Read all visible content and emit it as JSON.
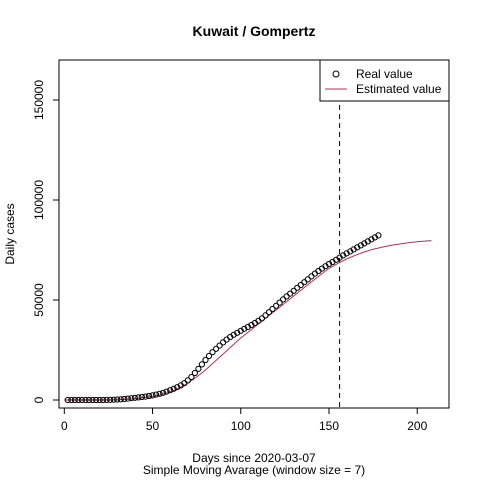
{
  "chart_data": {
    "type": "scatter",
    "title": "Kuwait / Gompertz",
    "xlabel": "Days since 2020-03-07",
    "subtitle": "Simple Moving Avarage (window size = 7)",
    "ylabel": "Daily cases",
    "xlim": [
      -3,
      218
    ],
    "ylim": [
      -4000,
      170000
    ],
    "xticks": [
      0,
      50,
      100,
      150,
      200
    ],
    "yticks": [
      0,
      50000,
      100000,
      150000
    ],
    "cutoff_x": 156,
    "legend": {
      "placement": "top-right",
      "entries": [
        "Real value",
        "Estimated value"
      ]
    },
    "colors": {
      "real": "#000000",
      "estimated": "#b03060"
    },
    "series": [
      {
        "name": "Real value",
        "style": "points",
        "x": [
          2,
          4,
          6,
          8,
          10,
          12,
          14,
          16,
          18,
          20,
          22,
          24,
          26,
          28,
          30,
          32,
          34,
          36,
          38,
          40,
          42,
          44,
          46,
          48,
          50,
          52,
          54,
          56,
          58,
          60,
          62,
          64,
          66,
          68,
          70,
          72,
          74,
          76,
          78,
          80,
          82,
          84,
          86,
          88,
          90,
          92,
          94,
          96,
          98,
          100,
          102,
          104,
          106,
          108,
          110,
          112,
          114,
          116,
          118,
          120,
          122,
          124,
          126,
          128,
          130,
          132,
          134,
          136,
          138,
          140,
          142,
          144,
          146,
          148,
          150,
          152,
          154,
          156,
          158,
          160,
          162,
          164,
          166,
          168,
          170,
          172,
          174,
          176,
          178
        ],
        "y": [
          0,
          0,
          0,
          0,
          0,
          0,
          0,
          0,
          0,
          0,
          0,
          50,
          100,
          150,
          250,
          350,
          500,
          700,
          900,
          1100,
          1300,
          1500,
          1700,
          2000,
          2300,
          2700,
          3100,
          3600,
          4200,
          4900,
          5600,
          6400,
          7300,
          8400,
          9800,
          11500,
          13500,
          15600,
          17800,
          20000,
          22000,
          23900,
          25600,
          27200,
          28800,
          30200,
          31500,
          32600,
          33600,
          34600,
          35600,
          36500,
          37500,
          38500,
          39600,
          40800,
          42300,
          43900,
          45500,
          47100,
          48700,
          50300,
          51800,
          53200,
          54600,
          56100,
          57500,
          58900,
          60300,
          61800,
          63200,
          64500,
          65700,
          66900,
          68000,
          69000,
          70100,
          71200,
          72300,
          73300,
          74300,
          75300,
          76300,
          77300,
          78300,
          79300,
          80300,
          81300,
          82300
        ]
      },
      {
        "name": "Estimated value",
        "style": "line",
        "x": [
          0,
          10,
          20,
          30,
          40,
          50,
          55,
          60,
          65,
          70,
          75,
          80,
          85,
          90,
          95,
          100,
          105,
          110,
          115,
          120,
          125,
          130,
          135,
          140,
          145,
          150,
          155,
          160,
          165,
          170,
          175,
          180,
          185,
          190,
          195,
          200,
          205,
          208
        ],
        "y": [
          0,
          0,
          20,
          150,
          600,
          1700,
          2700,
          4100,
          5900,
          8400,
          11500,
          15000,
          19000,
          23000,
          27000,
          31000,
          34500,
          38000,
          41500,
          45000,
          48500,
          52000,
          55500,
          59000,
          62500,
          65800,
          68300,
          70500,
          72400,
          74000,
          75400,
          76400,
          77300,
          78000,
          78600,
          79100,
          79500,
          79700
        ]
      }
    ]
  }
}
